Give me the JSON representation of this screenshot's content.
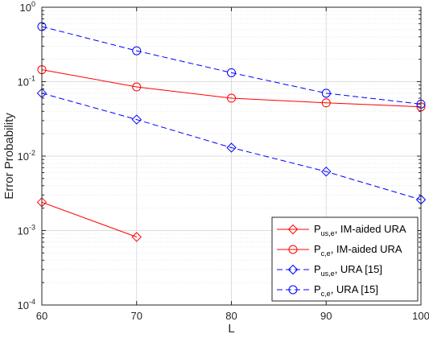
{
  "chart_data": {
    "type": "line",
    "xlabel": "L",
    "ylabel": "Error Probability",
    "xlim": [
      60,
      100
    ],
    "ylim": [
      0.0001,
      1
    ],
    "yscale": "log",
    "x_ticks": [
      60,
      70,
      80,
      90,
      100
    ],
    "y_ticks": [
      {
        "value": 0.0001,
        "base": "10",
        "exp": "-4"
      },
      {
        "value": 0.001,
        "base": "10",
        "exp": "-3"
      },
      {
        "value": 0.01,
        "base": "10",
        "exp": "-2"
      },
      {
        "value": 0.1,
        "base": "10",
        "exp": "-1"
      },
      {
        "value": 1,
        "base": "10",
        "exp": "0"
      }
    ],
    "grid": true,
    "legend_position": "bottom-right",
    "series": [
      {
        "name_main": "P",
        "name_sub": "us,e",
        "name_rest": ", IM-aided URA",
        "color": "#ff0000",
        "dash": "solid",
        "marker": "diamond",
        "x": [
          60,
          70
        ],
        "y": [
          0.0024,
          0.00082
        ]
      },
      {
        "name_main": "P",
        "name_sub": "c,e",
        "name_rest": ", IM-aided URA",
        "color": "#ff0000",
        "dash": "solid",
        "marker": "circle",
        "x": [
          60,
          70,
          80,
          90,
          100
        ],
        "y": [
          0.145,
          0.085,
          0.06,
          0.052,
          0.046
        ]
      },
      {
        "name_main": "P",
        "name_sub": "us,e",
        "name_rest": ", URA [15]",
        "color": "#0000ff",
        "dash": "dashed",
        "marker": "diamond",
        "x": [
          60,
          70,
          80,
          90,
          100
        ],
        "y": [
          0.07,
          0.031,
          0.013,
          0.0062,
          0.0026
        ]
      },
      {
        "name_main": "P",
        "name_sub": "c,e",
        "name_rest": ", URA [15]",
        "color": "#0000ff",
        "dash": "dashed",
        "marker": "circle",
        "x": [
          60,
          70,
          80,
          90,
          100
        ],
        "y": [
          0.55,
          0.26,
          0.132,
          0.07,
          0.05
        ]
      }
    ]
  }
}
